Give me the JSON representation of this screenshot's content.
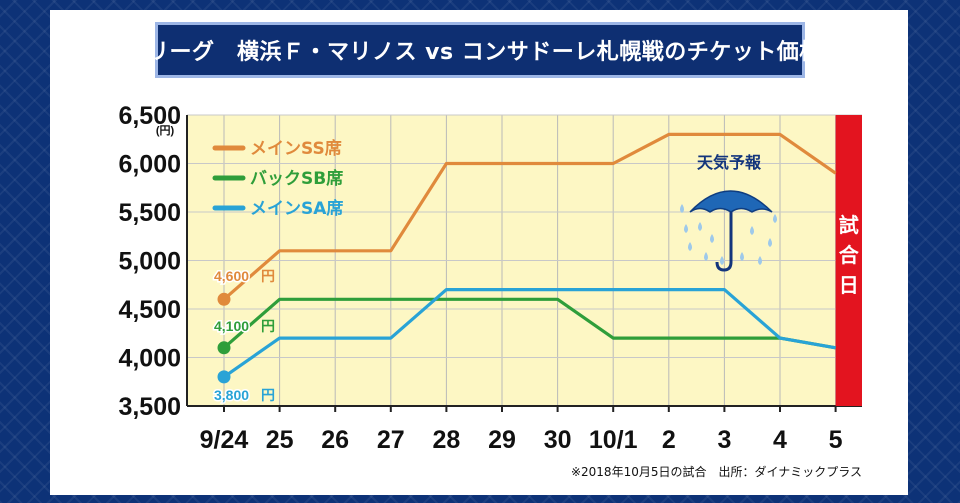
{
  "title": "Jリーグ　横浜Ｆ・マリノス vs コンサドーレ札幌戦のチケット価格",
  "chart_data": {
    "type": "line",
    "categories": [
      "9/24",
      "25",
      "26",
      "27",
      "28",
      "29",
      "30",
      "10/1",
      "2",
      "3",
      "4",
      "5"
    ],
    "y_unit": "(円)",
    "ylim": [
      3500,
      6500
    ],
    "yticks": [
      "3,500",
      "4,000",
      "4,500",
      "5,000",
      "5,500",
      "6,000",
      "6,500"
    ],
    "series": [
      {
        "name": "メインSS席",
        "color": "#e08a3c",
        "start_label": "4,600",
        "values": [
          4600,
          5100,
          5100,
          5100,
          6000,
          6000,
          6000,
          6000,
          6300,
          6300,
          6300,
          5900
        ]
      },
      {
        "name": "バックSB席",
        "color": "#2f9e3a",
        "start_label": "4,100",
        "values": [
          4100,
          4600,
          4600,
          4600,
          4600,
          4600,
          4600,
          4200,
          4200,
          4200,
          4200,
          4100
        ]
      },
      {
        "name": "メインSA席",
        "color": "#29a3d6",
        "start_label": "3,800",
        "values": [
          3800,
          4200,
          4200,
          4200,
          4700,
          4700,
          4700,
          4700,
          4700,
          4700,
          4200,
          4100
        ]
      }
    ],
    "label_unit": "円",
    "match_day_label": "試合日",
    "weather_label": "天気予報",
    "weather_icon": "umbrella-rain-icon",
    "note": "※2018年10月5日の試合　出所：ダイナミックプラス"
  }
}
